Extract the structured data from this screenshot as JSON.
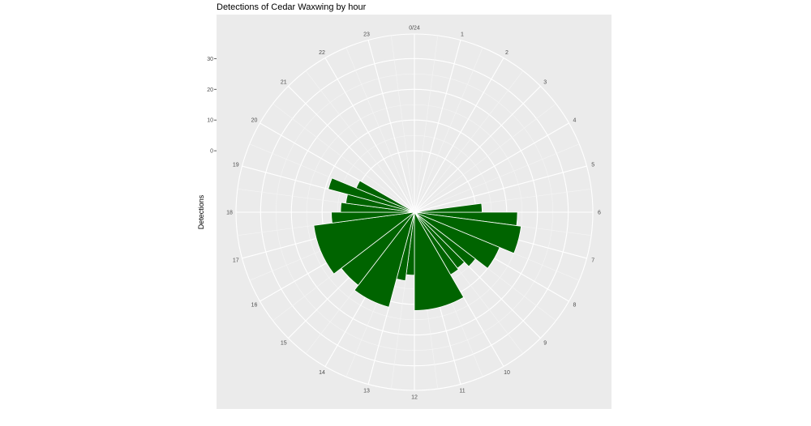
{
  "chart_data": {
    "type": "bar",
    "coord": "polar",
    "title": "Detections of Cedar Waxwing by hour",
    "ylabel": "Detections",
    "xlabel": "",
    "hour_labels": [
      "0/24",
      "1",
      "2",
      "3",
      "4",
      "5",
      "6",
      "7",
      "8",
      "9",
      "10",
      "11",
      "12",
      "13",
      "14",
      "15",
      "16",
      "17",
      "18",
      "19",
      "20",
      "21",
      "22",
      "23"
    ],
    "y_ticks": [
      0,
      10,
      20,
      30
    ],
    "y_tick_labels": [
      "0",
      "10",
      "20",
      "30"
    ],
    "ylim": [
      -20,
      38
    ],
    "series": [
      {
        "color": "#006400",
        "bars": [
          {
            "start": 6,
            "end": 6.5,
            "value": 13.5
          },
          {
            "start": 6.5,
            "end": 7.5,
            "value": 15
          },
          {
            "start": 7.5,
            "end": 8.5,
            "value": 10
          },
          {
            "start": 8.5,
            "end": 9,
            "value": 5
          },
          {
            "start": 9,
            "end": 9.5,
            "value": 3
          },
          {
            "start": 9.5,
            "end": 10,
            "value": 3.5
          },
          {
            "start": 10,
            "end": 12,
            "value": 12
          },
          {
            "start": 12,
            "end": 12.5,
            "value": 0.5
          },
          {
            "start": 12.5,
            "end": 13,
            "value": 2.5
          },
          {
            "start": 13,
            "end": 14.5,
            "value": 12
          },
          {
            "start": 14.5,
            "end": 15.5,
            "value": 10
          },
          {
            "start": 15.5,
            "end": 17.5,
            "value": 13
          },
          {
            "start": 17.5,
            "end": 18,
            "value": 7
          },
          {
            "start": 18,
            "end": 18.5,
            "value": 4
          },
          {
            "start": 18.5,
            "end": 19,
            "value": 2.5
          },
          {
            "start": 19,
            "end": 19.5,
            "value": 9
          },
          {
            "start": 19.5,
            "end": 20,
            "value": 0.5
          },
          {
            "start": 5.5,
            "end": 6,
            "value": 2
          }
        ]
      }
    ]
  }
}
